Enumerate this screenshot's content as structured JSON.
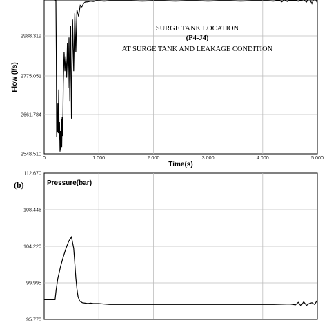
{
  "chart_data": [
    {
      "type": "line",
      "ylabel": "Flow (l/s)",
      "xlabel": "Time(s)",
      "annotation": [
        "SURGE TANK LOCATION",
        "(P4-J4)",
        "AT SURGE TANK AND LEAKAGE CONDITION"
      ],
      "yticks": [
        "2548.510",
        "2661.784",
        "2775.051",
        "2988.319"
      ],
      "xticks": [
        "0",
        "1.000",
        "2.000",
        "3.000",
        "4.000",
        "5.000"
      ],
      "xlim": [
        0,
        5000
      ],
      "ylim": [
        2548.51,
        3101.6
      ],
      "grid": true,
      "series": [
        {
          "x": [
            0,
            50,
            60,
            110,
            120,
            170,
            180,
            215,
            222,
            228,
            234,
            242,
            250,
            258,
            266,
            274,
            282,
            290,
            298,
            306,
            314,
            322,
            330,
            340,
            350,
            365,
            380,
            395,
            410,
            425,
            440,
            455,
            470,
            485,
            500,
            520,
            540,
            560,
            580,
            600,
            630,
            660,
            690,
            720,
            750,
            800,
            850,
            900,
            950,
            1000,
            1100,
            1200,
            1400,
            1600,
            1800,
            2000,
            2200,
            2400,
            2600,
            2800,
            3000,
            3200,
            3400,
            3600,
            3800,
            4000,
            4100,
            4200,
            4300,
            4350,
            4400,
            4450,
            4500,
            4550,
            4600,
            4650,
            4700,
            4750,
            4800,
            4850,
            4900,
            4950,
            5000
          ],
          "y": [
            3116,
            3116,
            3105,
            3105,
            3116,
            3116,
            3103,
            3100,
            2895,
            2598,
            2661,
            2612,
            2694,
            2608,
            2735,
            2589,
            2640,
            2555,
            2614,
            2561,
            2648,
            2568,
            2655,
            2600,
            2750,
            2900,
            2800,
            2880,
            2770,
            2950,
            2740,
            2980,
            2700,
            3020,
            2650,
            3040,
            2800,
            3060,
            2900,
            3070,
            3050,
            3085,
            3080,
            3090,
            3095,
            3096,
            3098,
            3097,
            3099,
            3099,
            3098,
            3099,
            3099,
            3099,
            3098,
            3099,
            3099,
            3098,
            3099,
            3099,
            3098,
            3099,
            3099,
            3098,
            3099,
            3099,
            3099,
            3098,
            3101,
            3096,
            3102,
            3097,
            3101,
            3099,
            3100,
            3098,
            3100,
            3102,
            3095,
            3108,
            3090,
            3110,
            3092
          ]
        }
      ]
    },
    {
      "type": "line",
      "panel_label": "(b)",
      "ylabel": "Pressure(bar)",
      "yticks": [
        "95.770",
        "99.995",
        "104.220",
        "108.446",
        "112.670"
      ],
      "xlim": [
        0,
        5000
      ],
      "ylim": [
        95.77,
        112.67
      ],
      "grid": true,
      "series": [
        {
          "x": [
            0,
            200,
            220,
            250,
            300,
            350,
            400,
            450,
            500,
            540,
            560,
            580,
            600,
            620,
            650,
            700,
            750,
            800,
            850,
            900,
            1000,
            1100,
            1200,
            1400,
            1600,
            1800,
            2000,
            2200,
            2400,
            2600,
            2800,
            3000,
            3200,
            3400,
            3600,
            3800,
            4000,
            4200,
            4500,
            4600,
            4650,
            4700,
            4750,
            4800,
            4850,
            4900,
            4950,
            5000
          ],
          "y": [
            98.05,
            98.05,
            99.2,
            100.5,
            101.9,
            103.0,
            104.0,
            104.8,
            105.3,
            104.0,
            102.3,
            100.6,
            99.3,
            98.4,
            97.9,
            97.7,
            97.65,
            97.6,
            97.65,
            97.6,
            97.6,
            97.55,
            97.5,
            97.5,
            97.5,
            97.5,
            97.5,
            97.5,
            97.5,
            97.5,
            97.5,
            97.5,
            97.5,
            97.5,
            97.5,
            97.5,
            97.5,
            97.5,
            97.55,
            97.45,
            97.75,
            97.35,
            97.8,
            97.4,
            97.6,
            97.7,
            97.5,
            98.0
          ]
        }
      ]
    }
  ]
}
